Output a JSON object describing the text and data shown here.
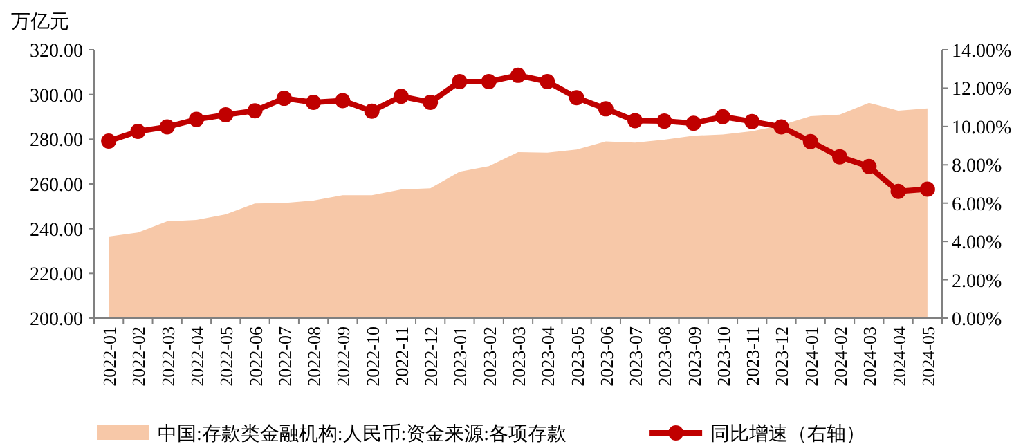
{
  "chart_data": {
    "type": "area",
    "ylabel": "万亿元",
    "categories": [
      "2022-01",
      "2022-02",
      "2022-03",
      "2022-04",
      "2022-05",
      "2022-06",
      "2022-07",
      "2022-08",
      "2022-09",
      "2022-10",
      "2022-11",
      "2022-12",
      "2023-01",
      "2023-02",
      "2023-03",
      "2023-04",
      "2023-05",
      "2023-06",
      "2023-07",
      "2023-08",
      "2023-09",
      "2023-10",
      "2023-11",
      "2023-12",
      "2024-01",
      "2024-02",
      "2024-03",
      "2024-04",
      "2024-05"
    ],
    "series": [
      {
        "name": "中国:存款类金融机构:人民币:资金来源:各项存款",
        "type": "area",
        "color": "#f7c8a8",
        "values": [
          236.5,
          238.3,
          243.3,
          243.9,
          246.4,
          251.3,
          251.5,
          252.6,
          255,
          255,
          257.5,
          258.1,
          265.5,
          268,
          274.2,
          274,
          275.4,
          279,
          278.5,
          279.8,
          281.6,
          282.1,
          283.6,
          286.3,
          290.3,
          291,
          296.3,
          292.8,
          293.8
        ]
      },
      {
        "name": "同比增速（右轴）",
        "type": "line",
        "axis": "y2",
        "color": "#c00000",
        "marker": "circle",
        "values": [
          9.24,
          9.74,
          9.98,
          10.37,
          10.61,
          10.82,
          11.47,
          11.26,
          11.35,
          10.8,
          11.57,
          11.26,
          12.34,
          12.34,
          12.67,
          12.34,
          11.5,
          10.92,
          10.3,
          10.28,
          10.17,
          10.51,
          10.26,
          9.98,
          9.21,
          8.42,
          7.91,
          6.61,
          6.73
        ]
      }
    ],
    "ylim": [
      200,
      320
    ],
    "yticks": [
      {
        "value": 200,
        "label": "200.00"
      },
      {
        "value": 220,
        "label": "220.00"
      },
      {
        "value": 240,
        "label": "240.00"
      },
      {
        "value": 260,
        "label": "260.00"
      },
      {
        "value": 280,
        "label": "280.00"
      },
      {
        "value": 300,
        "label": "300.00"
      },
      {
        "value": 320,
        "label": "320.00"
      }
    ],
    "y2lim": [
      0,
      14
    ],
    "y2ticks": [
      {
        "value": 0,
        "label": "0.00%"
      },
      {
        "value": 2,
        "label": "2.00%"
      },
      {
        "value": 4,
        "label": "4.00%"
      },
      {
        "value": 6,
        "label": "6.00%"
      },
      {
        "value": 8,
        "label": "8.00%"
      },
      {
        "value": 10,
        "label": "10.00%"
      },
      {
        "value": 12,
        "label": "12.00%"
      },
      {
        "value": 14,
        "label": "14.00%"
      }
    ],
    "legend": "bottom",
    "grid": false
  }
}
